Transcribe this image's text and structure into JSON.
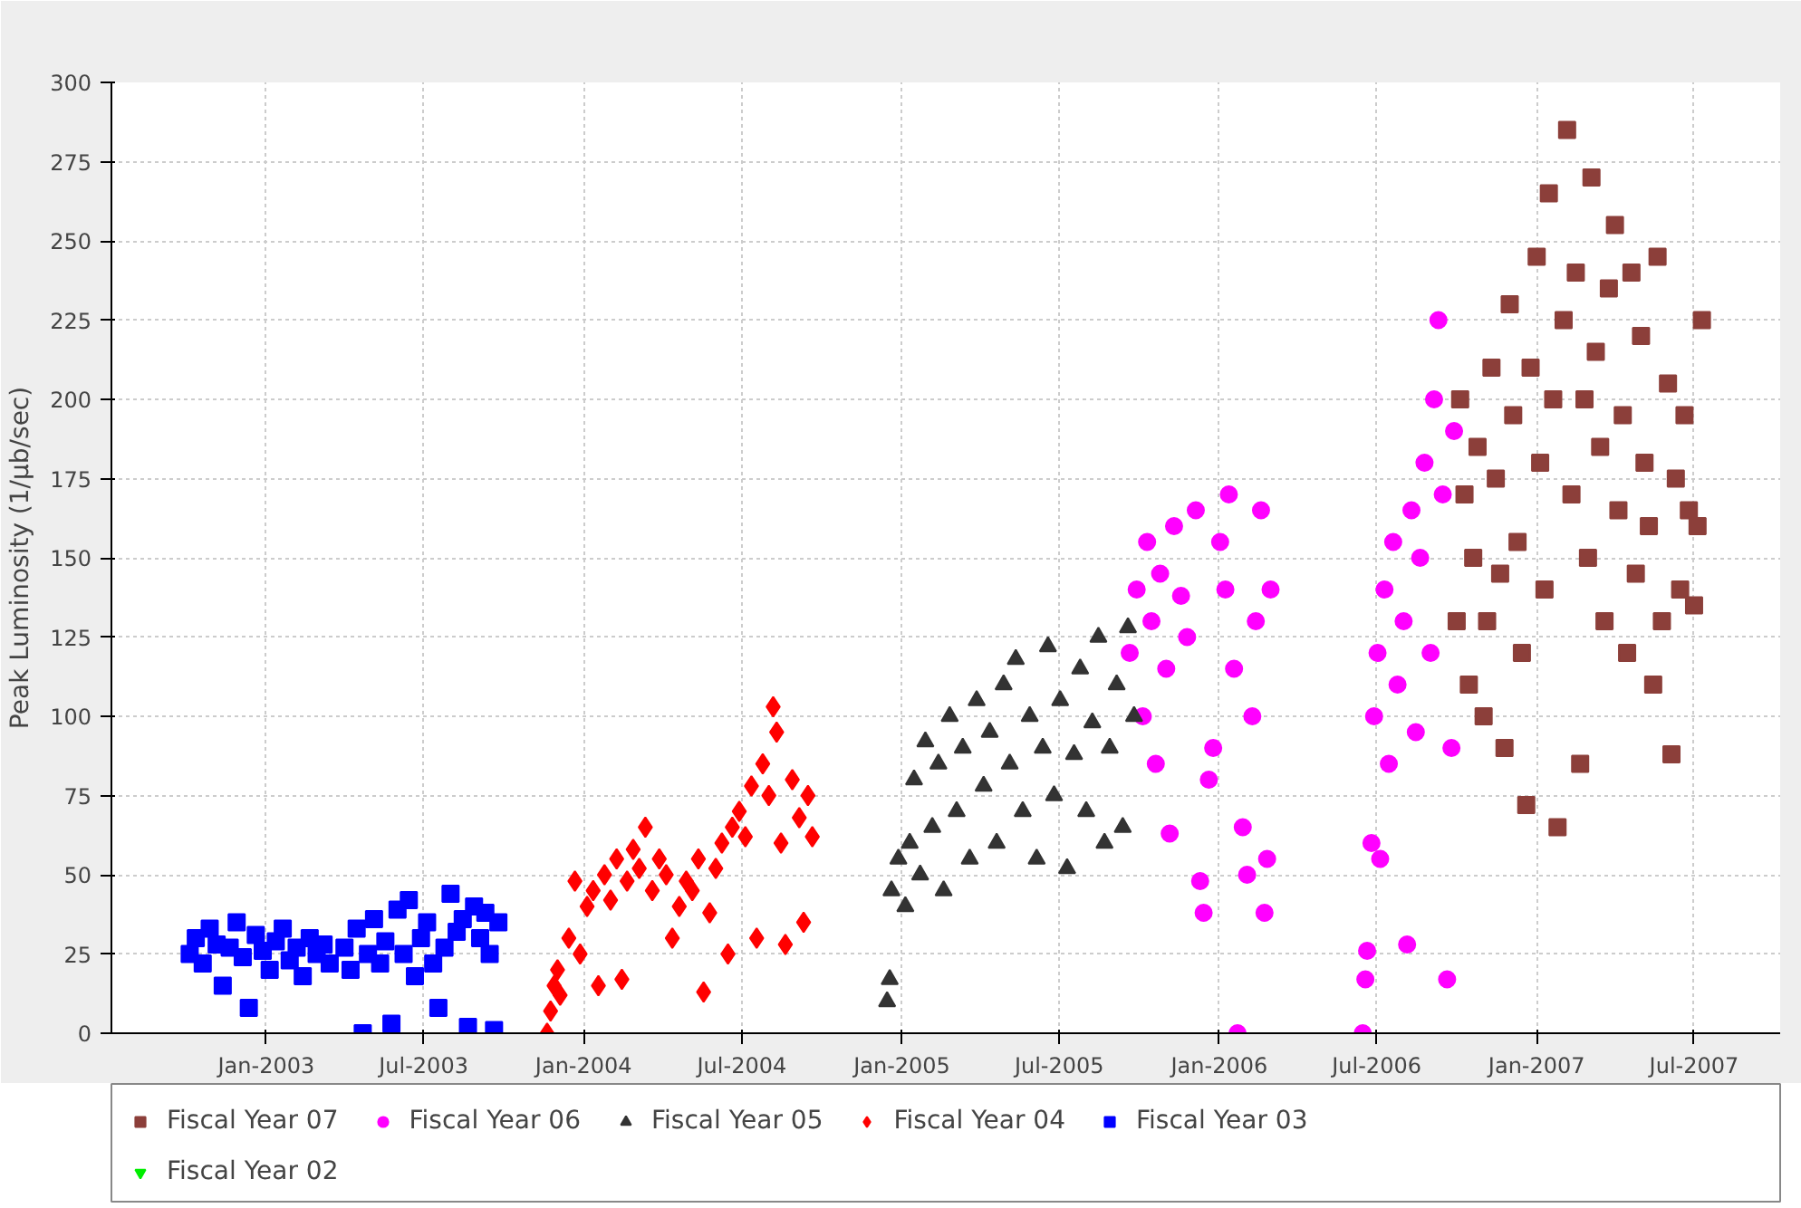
{
  "chart_data": {
    "type": "scatter",
    "ylabel": "Peak Luminosity (1/µb/sec)",
    "xlim": [
      "2002-07-07",
      "2007-10-08"
    ],
    "ylim": [
      0,
      300
    ],
    "xticks": [
      {
        "value": "2003-01-01",
        "label": "Jan-2003"
      },
      {
        "value": "2003-07-01",
        "label": "Jul-2003"
      },
      {
        "value": "2004-01-01",
        "label": "Jan-2004"
      },
      {
        "value": "2004-07-01",
        "label": "Jul-2004"
      },
      {
        "value": "2005-01-01",
        "label": "Jan-2005"
      },
      {
        "value": "2005-07-01",
        "label": "Jul-2005"
      },
      {
        "value": "2006-01-01",
        "label": "Jan-2006"
      },
      {
        "value": "2006-07-01",
        "label": "Jul-2006"
      },
      {
        "value": "2007-01-01",
        "label": "Jan-2007"
      },
      {
        "value": "2007-07-01",
        "label": "Jul-2007"
      }
    ],
    "yticks": [
      0,
      25,
      50,
      75,
      100,
      125,
      150,
      175,
      200,
      225,
      250,
      275,
      300
    ],
    "grid": true,
    "legend": "bottom",
    "series": [
      {
        "name": "Fiscal Year 07",
        "color": "#8c3f3a",
        "marker": "square",
        "x": [
          "2006-10-01",
          "2006-10-05",
          "2006-10-10",
          "2006-10-15",
          "2006-10-20",
          "2006-10-25",
          "2006-11-01",
          "2006-11-05",
          "2006-11-10",
          "2006-11-15",
          "2006-11-20",
          "2006-11-25",
          "2006-12-01",
          "2006-12-05",
          "2006-12-10",
          "2006-12-15",
          "2006-12-20",
          "2006-12-25",
          "2007-01-01",
          "2007-01-05",
          "2007-01-10",
          "2007-01-15",
          "2007-01-20",
          "2007-01-25",
          "2007-02-01",
          "2007-02-05",
          "2007-02-10",
          "2007-02-15",
          "2007-02-20",
          "2007-02-25",
          "2007-03-01",
          "2007-03-05",
          "2007-03-10",
          "2007-03-15",
          "2007-03-20",
          "2007-03-25",
          "2007-04-01",
          "2007-04-05",
          "2007-04-10",
          "2007-04-15",
          "2007-04-20",
          "2007-04-25",
          "2007-05-01",
          "2007-05-05",
          "2007-05-10",
          "2007-05-15",
          "2007-05-20",
          "2007-05-25",
          "2007-06-01",
          "2007-06-05",
          "2007-06-10",
          "2007-06-15",
          "2007-06-20",
          "2007-06-25",
          "2007-07-01",
          "2007-07-05",
          "2007-07-10"
        ],
        "values": [
          130,
          200,
          170,
          110,
          150,
          185,
          100,
          130,
          210,
          175,
          145,
          90,
          230,
          195,
          155,
          120,
          72,
          210,
          245,
          180,
          140,
          265,
          200,
          65,
          225,
          285,
          170,
          240,
          85,
          200,
          150,
          270,
          215,
          185,
          130,
          235,
          255,
          165,
          195,
          120,
          240,
          145,
          220,
          180,
          160,
          110,
          245,
          130,
          205,
          88,
          175,
          140,
          195,
          165,
          135,
          160,
          225
        ]
      },
      {
        "name": "Fiscal Year 06",
        "color": "#ff00ff",
        "marker": "circle",
        "x": [
          "2005-09-20",
          "2005-09-28",
          "2005-10-05",
          "2005-10-10",
          "2005-10-15",
          "2005-10-20",
          "2005-10-25",
          "2005-11-01",
          "2005-11-05",
          "2005-11-10",
          "2005-11-18",
          "2005-11-25",
          "2005-12-05",
          "2005-12-10",
          "2005-12-14",
          "2005-12-20",
          "2005-12-25",
          "2006-01-02",
          "2006-01-08",
          "2006-01-12",
          "2006-01-18",
          "2006-01-22",
          "2006-01-28",
          "2006-02-02",
          "2006-02-08",
          "2006-02-12",
          "2006-02-18",
          "2006-02-22",
          "2006-02-25",
          "2006-03-01",
          "2006-06-15",
          "2006-06-18",
          "2006-06-20",
          "2006-06-25",
          "2006-06-28",
          "2006-07-02",
          "2006-07-05",
          "2006-07-10",
          "2006-07-15",
          "2006-07-20",
          "2006-07-25",
          "2006-08-01",
          "2006-08-05",
          "2006-08-10",
          "2006-08-15",
          "2006-08-20",
          "2006-08-25",
          "2006-09-01",
          "2006-09-05",
          "2006-09-10",
          "2006-09-15",
          "2006-09-20",
          "2006-09-25",
          "2006-09-28"
        ],
        "values": [
          120,
          140,
          100,
          155,
          130,
          85,
          145,
          115,
          63,
          160,
          138,
          125,
          165,
          48,
          38,
          80,
          90,
          155,
          140,
          170,
          115,
          0,
          65,
          50,
          100,
          130,
          165,
          38,
          55,
          140,
          0,
          17,
          26,
          60,
          100,
          120,
          55,
          140,
          85,
          155,
          110,
          130,
          28,
          165,
          95,
          150,
          180,
          120,
          200,
          225,
          170,
          17,
          90,
          190
        ]
      },
      {
        "name": "Fiscal Year 05",
        "color": "#333333",
        "marker": "triangle",
        "x": [
          "2004-12-15",
          "2004-12-18",
          "2004-12-20",
          "2004-12-28",
          "2005-01-05",
          "2005-01-10",
          "2005-01-15",
          "2005-01-22",
          "2005-01-28",
          "2005-02-05",
          "2005-02-12",
          "2005-02-18",
          "2005-02-25",
          "2005-03-05",
          "2005-03-12",
          "2005-03-20",
          "2005-03-28",
          "2005-04-05",
          "2005-04-12",
          "2005-04-20",
          "2005-04-28",
          "2005-05-05",
          "2005-05-12",
          "2005-05-20",
          "2005-05-28",
          "2005-06-05",
          "2005-06-12",
          "2005-06-18",
          "2005-06-25",
          "2005-07-02",
          "2005-07-10",
          "2005-07-18",
          "2005-07-25",
          "2005-08-01",
          "2005-08-08",
          "2005-08-15",
          "2005-08-22",
          "2005-08-28",
          "2005-09-05",
          "2005-09-12",
          "2005-09-18",
          "2005-09-25"
        ],
        "values": [
          10,
          17,
          45,
          55,
          40,
          60,
          80,
          50,
          92,
          65,
          85,
          45,
          100,
          70,
          90,
          55,
          105,
          78,
          95,
          60,
          110,
          85,
          118,
          70,
          100,
          55,
          90,
          122,
          75,
          105,
          52,
          88,
          115,
          70,
          98,
          125,
          60,
          90,
          110,
          65,
          128,
          100
        ]
      },
      {
        "name": "Fiscal Year 04",
        "color": "#ff0000",
        "marker": "diamond",
        "x": [
          "2003-11-20",
          "2003-11-24",
          "2003-11-28",
          "2003-12-02",
          "2003-12-05",
          "2003-12-15",
          "2003-12-22",
          "2003-12-28",
          "2004-01-05",
          "2004-01-12",
          "2004-01-18",
          "2004-01-25",
          "2004-02-01",
          "2004-02-08",
          "2004-02-14",
          "2004-02-20",
          "2004-02-27",
          "2004-03-05",
          "2004-03-12",
          "2004-03-20",
          "2004-03-28",
          "2004-04-05",
          "2004-04-12",
          "2004-04-20",
          "2004-04-28",
          "2004-05-05",
          "2004-05-12",
          "2004-05-18",
          "2004-05-25",
          "2004-06-01",
          "2004-06-08",
          "2004-06-15",
          "2004-06-20",
          "2004-06-28",
          "2004-07-05",
          "2004-07-12",
          "2004-07-18",
          "2004-07-25",
          "2004-08-01",
          "2004-08-06",
          "2004-08-10",
          "2004-08-15",
          "2004-08-20",
          "2004-08-28",
          "2004-09-05",
          "2004-09-10",
          "2004-09-15",
          "2004-09-20"
        ],
        "values": [
          0,
          7,
          15,
          20,
          12,
          30,
          48,
          25,
          40,
          45,
          15,
          50,
          42,
          55,
          17,
          48,
          58,
          52,
          65,
          45,
          55,
          50,
          30,
          40,
          48,
          45,
          55,
          13,
          38,
          52,
          60,
          25,
          65,
          70,
          62,
          78,
          30,
          85,
          75,
          103,
          95,
          60,
          28,
          80,
          68,
          35,
          75,
          62
        ]
      },
      {
        "name": "Fiscal Year 03",
        "color": "#0000ff",
        "marker": "square",
        "x": [
          "2002-10-05",
          "2002-10-12",
          "2002-10-20",
          "2002-10-28",
          "2002-11-05",
          "2002-11-12",
          "2002-11-20",
          "2002-11-28",
          "2002-12-05",
          "2002-12-12",
          "2002-12-20",
          "2002-12-28",
          "2003-01-05",
          "2003-01-12",
          "2003-01-20",
          "2003-01-28",
          "2003-02-05",
          "2003-02-12",
          "2003-02-20",
          "2003-02-28",
          "2003-03-08",
          "2003-03-15",
          "2003-04-01",
          "2003-04-08",
          "2003-04-15",
          "2003-04-22",
          "2003-04-28",
          "2003-05-05",
          "2003-05-12",
          "2003-05-18",
          "2003-05-25",
          "2003-06-01",
          "2003-06-08",
          "2003-06-14",
          "2003-06-21",
          "2003-06-28",
          "2003-07-05",
          "2003-07-12",
          "2003-07-18",
          "2003-07-25",
          "2003-08-01",
          "2003-08-08",
          "2003-08-15",
          "2003-08-21",
          "2003-08-28",
          "2003-09-04",
          "2003-09-10",
          "2003-09-15",
          "2003-09-20",
          "2003-09-25"
        ],
        "values": [
          25,
          30,
          22,
          33,
          28,
          15,
          27,
          35,
          24,
          8,
          31,
          26,
          20,
          29,
          33,
          23,
          27,
          18,
          30,
          25,
          28,
          22,
          27,
          20,
          33,
          0,
          25,
          36,
          22,
          29,
          3,
          39,
          25,
          42,
          18,
          30,
          35,
          22,
          8,
          27,
          44,
          32,
          36,
          2,
          40,
          30,
          38,
          25,
          1,
          35
        ]
      },
      {
        "name": "Fiscal Year 02",
        "color": "#00ee00",
        "marker": "inverted_triangle"
      }
    ]
  }
}
